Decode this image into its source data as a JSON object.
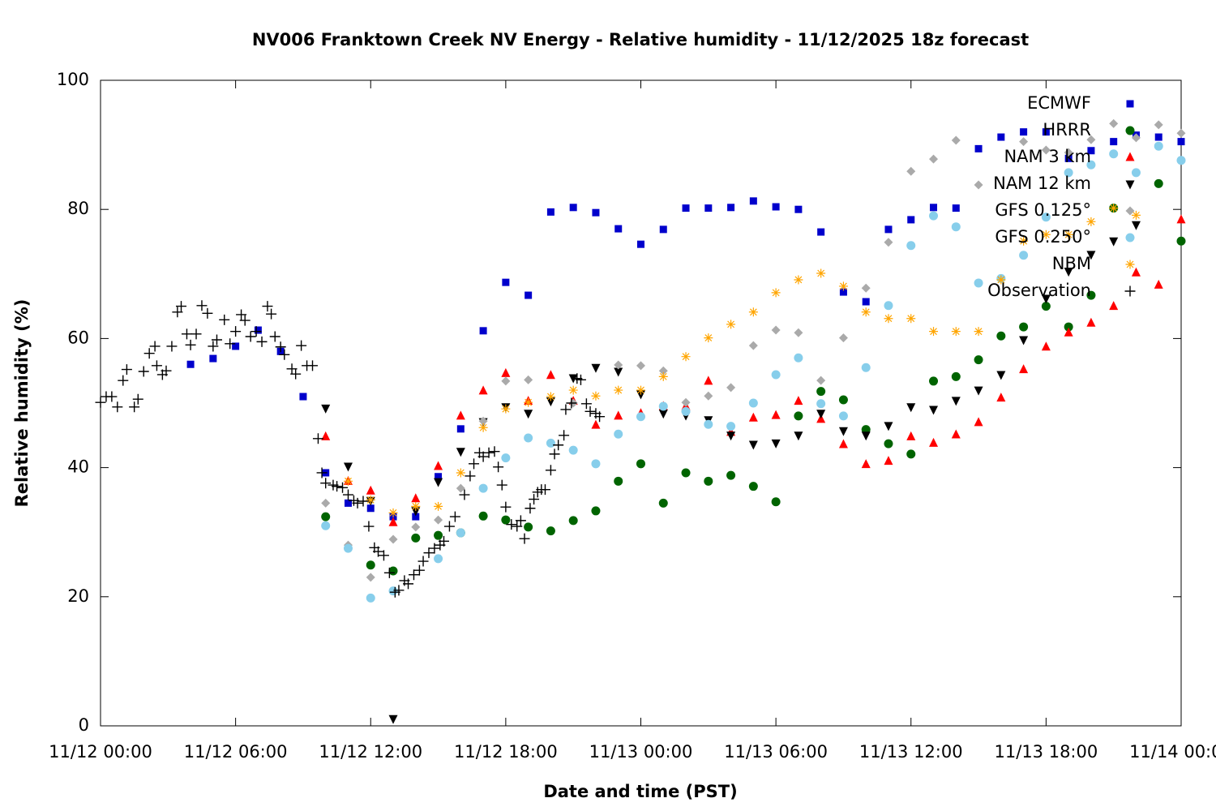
{
  "chart_data": {
    "type": "scatter",
    "title": "NV006 Franktown Creek NV Energy - Relative humidity - 11/12/2025 18z forecast",
    "x_label": "Date and time (PST)",
    "y_label": "Relative humidity (%)",
    "xlim": [
      "11/12 00:00",
      "11/14 00:00"
    ],
    "xticks": [
      "11/12 00:00",
      "11/12 06:00",
      "11/12 12:00",
      "11/12 18:00",
      "11/13 00:00",
      "11/13 06:00",
      "11/13 12:00",
      "11/13 18:00",
      "11/14 00:00"
    ],
    "ylim": [
      0,
      100
    ],
    "yticks": [
      0,
      20,
      40,
      60,
      80,
      100
    ],
    "grid": false,
    "legend": "top-right",
    "x": [
      "11/12 04:00",
      "11/12 05:00",
      "11/12 06:00",
      "11/12 07:00",
      "11/12 08:00",
      "11/12 09:00",
      "11/12 10:00",
      "11/12 11:00",
      "11/12 12:00",
      "11/12 13:00",
      "11/12 14:00",
      "11/12 15:00",
      "11/12 16:00",
      "11/12 17:00",
      "11/12 18:00",
      "11/12 19:00",
      "11/12 20:00",
      "11/12 21:00",
      "11/12 22:00",
      "11/12 23:00",
      "11/13 00:00",
      "11/13 01:00",
      "11/13 02:00",
      "11/13 03:00",
      "11/13 04:00",
      "11/13 05:00",
      "11/13 06:00",
      "11/13 07:00",
      "11/13 08:00",
      "11/13 09:00",
      "11/13 10:00",
      "11/13 11:00",
      "11/13 12:00",
      "11/13 13:00",
      "11/13 14:00",
      "11/13 15:00",
      "11/13 16:00",
      "11/13 17:00",
      "11/13 18:00",
      "11/13 19:00",
      "11/13 20:00",
      "11/13 21:00",
      "11/13 22:00",
      "11/13 23:00",
      "11/14 00:00"
    ],
    "series": [
      {
        "name": "ECMWF",
        "color": "#0000cc",
        "marker": "square",
        "values": [
          56.0,
          56.9,
          58.8,
          61.3,
          58.0,
          51.0,
          39.2,
          34.5,
          33.7,
          32.4,
          32.4,
          38.6,
          46.0,
          61.2,
          68.7,
          66.7,
          79.6,
          80.3,
          79.5,
          77.0,
          74.6,
          76.9,
          80.2,
          80.2,
          80.3,
          81.3,
          80.4,
          80.0,
          76.5,
          67.2,
          65.7,
          76.9,
          78.4,
          80.3,
          80.2,
          89.4,
          91.2,
          92.0,
          92.0,
          87.9,
          89.1,
          90.5,
          91.5,
          91.2,
          90.5
        ]
      },
      {
        "name": "HRRR",
        "color": "#006400",
        "marker": "circle",
        "values": [
          null,
          null,
          null,
          null,
          null,
          null,
          32.4,
          null,
          24.9,
          24.0,
          29.1,
          29.5,
          29.9,
          32.5,
          31.9,
          30.8,
          30.2,
          31.8,
          33.3,
          37.9,
          40.6,
          34.5,
          39.2,
          37.9,
          38.8,
          37.1,
          34.7,
          48.0,
          51.8,
          50.5,
          45.9,
          43.7,
          42.1,
          53.4,
          54.1,
          56.7,
          60.4,
          61.8,
          65.0,
          61.8,
          66.7,
          80.2,
          null,
          84.0,
          75.1
        ]
      },
      {
        "name": "NAM 3 km",
        "color": "#ff0000",
        "marker": "triangle",
        "values": [
          null,
          null,
          null,
          null,
          null,
          null,
          44.8,
          37.9,
          36.4,
          31.5,
          35.2,
          40.2,
          48.0,
          51.9,
          54.6,
          50.3,
          54.3,
          50.3,
          46.6,
          48.0,
          48.4,
          49.5,
          49.5,
          53.4,
          45.5,
          47.7,
          48.1,
          50.3,
          47.5,
          43.6,
          40.5,
          41.0,
          44.8,
          43.8,
          45.1,
          47.0,
          50.8,
          55.2,
          58.7,
          60.9,
          62.4,
          65.0,
          70.2,
          68.3,
          78.4
        ]
      },
      {
        "name": "NAM 12 km",
        "color": "#000000",
        "marker": "triangle-down",
        "values": [
          null,
          null,
          null,
          null,
          null,
          null,
          49.2,
          40.2,
          34.9,
          1.1,
          33.3,
          37.8,
          42.5,
          47.1,
          49.4,
          48.4,
          50.3,
          53.9,
          55.5,
          54.9,
          51.4,
          48.4,
          48.1,
          47.4,
          45.0,
          43.6,
          43.8,
          45.0,
          48.4,
          45.7,
          45.0,
          46.5,
          49.4,
          49.0,
          50.4,
          52.0,
          54.4,
          59.8,
          66.2,
          70.4,
          73.0,
          75.1,
          77.6,
          null,
          null
        ]
      },
      {
        "name": "GFS 0.125°",
        "color": "#aaaaaa",
        "marker": "diamond",
        "values": [
          null,
          null,
          null,
          null,
          null,
          null,
          34.5,
          28.0,
          23.0,
          28.9,
          30.8,
          31.9,
          36.8,
          47.2,
          53.4,
          53.6,
          null,
          50.0,
          null,
          55.9,
          55.8,
          55.0,
          50.1,
          51.1,
          52.4,
          58.9,
          61.3,
          60.9,
          53.5,
          60.1,
          67.8,
          74.9,
          85.9,
          87.8,
          90.7,
          83.8,
          null,
          90.5,
          89.2,
          88.8,
          90.8,
          93.3,
          91.1,
          93.1,
          91.8
        ]
      },
      {
        "name": "GFS 0.250°",
        "color": "#87ceeb",
        "marker": "circle",
        "values": [
          null,
          null,
          null,
          null,
          null,
          null,
          31.0,
          27.5,
          19.8,
          20.9,
          null,
          25.9,
          29.9,
          36.8,
          41.5,
          44.6,
          43.8,
          42.7,
          40.6,
          45.2,
          47.9,
          49.5,
          48.7,
          46.7,
          46.4,
          50.0,
          54.4,
          57.0,
          49.9,
          48.0,
          55.5,
          65.1,
          74.4,
          79.0,
          77.3,
          68.6,
          69.3,
          72.9,
          78.8,
          85.7,
          86.9,
          88.6,
          85.7,
          89.8,
          87.6
        ]
      },
      {
        "name": "NBM",
        "color": "#ffa500",
        "marker": "asterisk",
        "values": [
          null,
          null,
          null,
          null,
          null,
          null,
          null,
          37.9,
          35.0,
          33.0,
          34.0,
          34.0,
          39.2,
          46.2,
          49.1,
          50.1,
          51.0,
          52.0,
          51.1,
          52.0,
          52.0,
          54.1,
          57.2,
          60.1,
          62.2,
          64.1,
          67.1,
          69.1,
          70.1,
          68.1,
          64.1,
          63.1,
          63.1,
          61.1,
          61.1,
          61.1,
          69.1,
          75.1,
          76.1,
          76.1,
          78.1,
          80.2,
          79.1,
          null,
          null
        ]
      },
      {
        "name": "Observation",
        "color": "#000000",
        "marker": "plus",
        "x": [
          "11/12 00:00",
          "11/12 00:15",
          "11/12 00:30",
          "11/12 00:45",
          "11/12 01:00",
          "11/12 01:10",
          "11/12 01:30",
          "11/12 01:40",
          "11/12 01:55",
          "11/12 02:10",
          "11/12 02:25",
          "11/12 02:30",
          "11/12 02:45",
          "11/12 02:55",
          "11/12 03:10",
          "11/12 03:25",
          "11/12 03:35",
          "11/12 03:50",
          "11/12 04:00",
          "11/12 04:15",
          "11/12 04:30",
          "11/12 04:45",
          "11/12 05:00",
          "11/12 05:10",
          "11/12 05:30",
          "11/12 05:45",
          "11/12 06:00",
          "11/12 06:15",
          "11/12 06:25",
          "11/12 06:40",
          "11/12 06:55",
          "11/12 07:10",
          "11/12 07:25",
          "11/12 07:35",
          "11/12 07:45",
          "11/12 08:00",
          "11/12 08:10",
          "11/12 08:30",
          "11/12 08:40",
          "11/12 08:55",
          "11/12 09:10",
          "11/12 09:25",
          "11/12 09:40",
          "11/12 09:50",
          "11/12 10:00",
          "11/12 10:20",
          "11/12 10:30",
          "11/12 10:45",
          "11/12 11:00",
          "11/12 11:15",
          "11/12 11:25",
          "11/12 11:40",
          "11/12 11:55",
          "11/12 12:10",
          "11/12 12:20",
          "11/12 12:35",
          "11/12 12:50",
          "11/12 13:05",
          "11/12 13:15",
          "11/12 13:30",
          "11/12 13:40",
          "11/12 13:55",
          "11/12 14:10",
          "11/12 14:20",
          "11/12 14:35",
          "11/12 14:50",
          "11/12 15:05",
          "11/12 15:15",
          "11/12 15:30",
          "11/12 15:45",
          "11/12 16:10",
          "11/12 16:25",
          "11/12 16:35",
          "11/12 16:50",
          "11/12 17:00",
          "11/12 17:15",
          "11/12 17:30",
          "11/12 17:40",
          "11/12 17:50",
          "11/12 18:00",
          "11/12 18:15",
          "11/12 18:30",
          "11/12 18:40",
          "11/12 18:50",
          "11/12 19:05",
          "11/12 19:15",
          "11/12 19:25",
          "11/12 19:35",
          "11/12 19:45",
          "11/12 20:00",
          "11/12 20:10",
          "11/12 20:20",
          "11/12 20:35",
          "11/12 20:40",
          "11/12 20:55",
          "11/12 21:10",
          "11/12 21:20",
          "11/12 21:35",
          "11/12 21:45",
          "11/12 22:00",
          "11/12 22:10"
        ],
        "values": [
          50.1,
          51.0,
          51.0,
          49.4,
          53.5,
          55.2,
          49.4,
          50.6,
          54.9,
          57.7,
          58.8,
          55.8,
          54.4,
          55.0,
          58.8,
          64.1,
          65.0,
          60.7,
          59.0,
          60.7,
          65.1,
          63.9,
          58.8,
          59.8,
          62.9,
          59.2,
          61.1,
          63.7,
          62.8,
          60.3,
          61.1,
          59.5,
          65.0,
          63.8,
          60.3,
          58.7,
          57.5,
          55.3,
          54.5,
          58.9,
          55.8,
          55.8,
          44.5,
          39.2,
          37.6,
          37.3,
          37.1,
          36.9,
          35.8,
          34.9,
          34.5,
          34.8,
          30.9,
          27.6,
          27.0,
          26.4,
          23.7,
          20.7,
          21.0,
          22.5,
          22.0,
          23.4,
          24.1,
          25.5,
          26.8,
          27.5,
          28.0,
          28.6,
          30.9,
          32.4,
          35.8,
          38.7,
          40.6,
          42.3,
          41.7,
          42.3,
          42.5,
          40.1,
          37.3,
          33.9,
          31.2,
          30.9,
          31.8,
          29.0,
          33.7,
          35.1,
          36.2,
          36.6,
          36.6,
          39.6,
          42.1,
          43.5,
          45.0,
          49.0,
          50.0,
          53.8,
          53.6,
          49.9,
          48.7,
          48.4,
          47.9
        ]
      }
    ]
  }
}
